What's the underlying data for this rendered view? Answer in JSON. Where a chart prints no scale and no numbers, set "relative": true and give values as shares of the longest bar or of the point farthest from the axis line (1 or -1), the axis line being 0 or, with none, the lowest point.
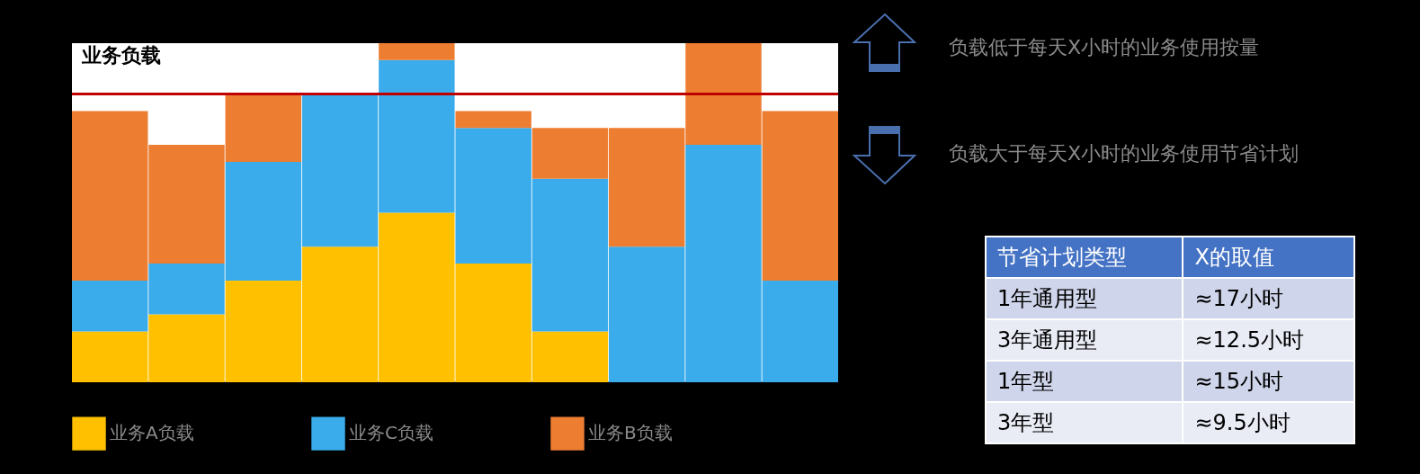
{
  "chart_data": [
    {
      "type": "bar",
      "title": "业务负载",
      "relative": true,
      "stacked": true,
      "legend": "bottom",
      "tick_labels": false,
      "categories": [
        null,
        null,
        null,
        null,
        null,
        null,
        null,
        null,
        null,
        null
      ],
      "series": [
        {
          "name": "业务A负载",
          "color": "#ffc000",
          "values": [
            0.15,
            0.2,
            0.3,
            0.4,
            0.5,
            0.35,
            0.15,
            0,
            0,
            0
          ]
        },
        {
          "name": "业务C负载",
          "color": "#3aabeb",
          "values": [
            0.15,
            0.15,
            0.35,
            0.45,
            0.45,
            0.4,
            0.45,
            0.4,
            0.7,
            0.3
          ]
        },
        {
          "name": "业务B负载",
          "color": "#ed7d31",
          "values": [
            0.5,
            0.35,
            0.2,
            0,
            0.05,
            0.05,
            0.15,
            0.35,
            0.3,
            0.5
          ]
        }
      ],
      "ref_lines": [
        {
          "axis": "y",
          "value": 0.85,
          "color": "#c00000"
        }
      ],
      "annotations": [
        "负载低于每天X小时的业务使用按量",
        "负载大于每天X小时的业务使用节省计划"
      ]
    },
    {
      "type": "other",
      "annotations": [
        "节省计划类型",
        "X的取值",
        "1年通用型",
        "≈17小时",
        "3年通用型",
        "≈12.5小时",
        "1年型",
        "≈15小时",
        "3年型",
        "≈9.5小时"
      ]
    }
  ]
}
